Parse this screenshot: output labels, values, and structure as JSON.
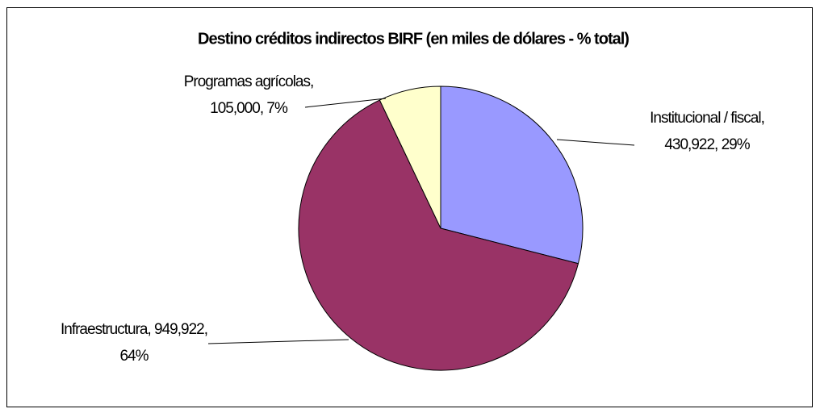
{
  "chart_data": {
    "type": "pie",
    "title": "Destino créditos indirectos BIRF (en miles de dólares - % total)",
    "categories": [
      "Institucional / fiscal",
      "Infraestructura",
      "Programas agrícolas"
    ],
    "values": [
      430922,
      949922,
      105000
    ],
    "value_labels": [
      "Institucional / fiscal, 430,922, 29%",
      "Infraestructura, 949,922, 64%",
      "Programas agrícolas, 105,000, 7%"
    ],
    "colors": [
      "#9999ff",
      "#993366",
      "#ffffcc"
    ]
  }
}
